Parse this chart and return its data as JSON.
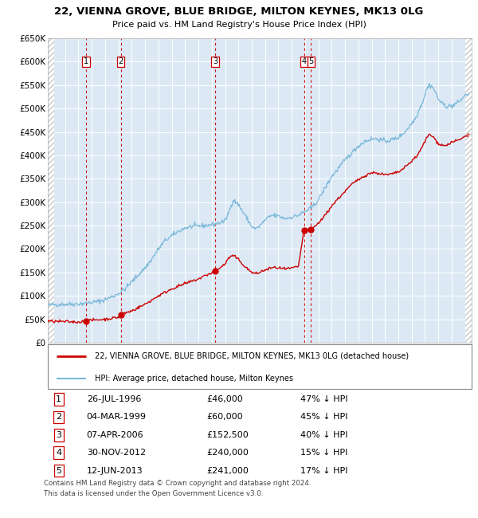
{
  "title": "22, VIENNA GROVE, BLUE BRIDGE, MILTON KEYNES, MK13 0LG",
  "subtitle": "Price paid vs. HM Land Registry's House Price Index (HPI)",
  "legend_line1": "22, VIENNA GROVE, BLUE BRIDGE, MILTON KEYNES, MK13 0LG (detached house)",
  "legend_line2": "HPI: Average price, detached house, Milton Keynes",
  "footer1": "Contains HM Land Registry data © Crown copyright and database right 2024.",
  "footer2": "This data is licensed under the Open Government Licence v3.0.",
  "sale_points": [
    {
      "num": 1,
      "year": 1996.57,
      "price": 46000,
      "date": "26-JUL-1996",
      "pct": "47% ↓ HPI"
    },
    {
      "num": 2,
      "year": 1999.17,
      "price": 60000,
      "date": "04-MAR-1999",
      "pct": "45% ↓ HPI"
    },
    {
      "num": 3,
      "year": 2006.27,
      "price": 152500,
      "date": "07-APR-2006",
      "pct": "40% ↓ HPI"
    },
    {
      "num": 4,
      "year": 2012.92,
      "price": 240000,
      "date": "30-NOV-2012",
      "pct": "15% ↓ HPI"
    },
    {
      "num": 5,
      "year": 2013.45,
      "price": 241000,
      "date": "12-JUN-2013",
      "pct": "17% ↓ HPI"
    }
  ],
  "hpi_color": "#7ab8d9",
  "price_color": "#cc0000",
  "dashed_color": "#cc0000",
  "plot_bg": "#dce9f5",
  "grid_color": "#ffffff",
  "hatch_color": "#c8c8c8",
  "border_color": "#999999",
  "ylim": [
    0,
    650000
  ],
  "yticks": [
    0,
    50000,
    100000,
    150000,
    200000,
    250000,
    300000,
    350000,
    400000,
    450000,
    500000,
    550000,
    600000,
    650000
  ],
  "xlim_start": 1993.7,
  "xlim_end": 2025.5,
  "hpi_anchors": [
    [
      1993.7,
      80000
    ],
    [
      1994.0,
      81000
    ],
    [
      1995.0,
      82000
    ],
    [
      1996.0,
      83000
    ],
    [
      1996.5,
      84000
    ],
    [
      1997.0,
      86000
    ],
    [
      1997.5,
      88000
    ],
    [
      1998.0,
      92000
    ],
    [
      1998.5,
      98000
    ],
    [
      1999.0,
      105000
    ],
    [
      1999.5,
      115000
    ],
    [
      2000.0,
      130000
    ],
    [
      2000.5,
      145000
    ],
    [
      2001.0,
      160000
    ],
    [
      2001.5,
      178000
    ],
    [
      2002.0,
      200000
    ],
    [
      2002.5,
      218000
    ],
    [
      2003.0,
      228000
    ],
    [
      2003.5,
      238000
    ],
    [
      2004.0,
      245000
    ],
    [
      2004.5,
      248000
    ],
    [
      2005.0,
      249000
    ],
    [
      2005.5,
      250000
    ],
    [
      2006.0,
      252000
    ],
    [
      2006.5,
      255000
    ],
    [
      2007.0,
      260000
    ],
    [
      2007.3,
      280000
    ],
    [
      2007.6,
      305000
    ],
    [
      2008.0,
      295000
    ],
    [
      2008.5,
      272000
    ],
    [
      2009.0,
      248000
    ],
    [
      2009.3,
      243000
    ],
    [
      2009.5,
      247000
    ],
    [
      2009.8,
      255000
    ],
    [
      2010.0,
      262000
    ],
    [
      2010.5,
      272000
    ],
    [
      2011.0,
      270000
    ],
    [
      2011.5,
      265000
    ],
    [
      2012.0,
      268000
    ],
    [
      2012.5,
      272000
    ],
    [
      2013.0,
      280000
    ],
    [
      2013.5,
      288000
    ],
    [
      2014.0,
      305000
    ],
    [
      2014.5,
      330000
    ],
    [
      2015.0,
      355000
    ],
    [
      2015.5,
      372000
    ],
    [
      2016.0,
      390000
    ],
    [
      2016.5,
      405000
    ],
    [
      2017.0,
      420000
    ],
    [
      2017.5,
      430000
    ],
    [
      2018.0,
      435000
    ],
    [
      2018.5,
      435000
    ],
    [
      2019.0,
      430000
    ],
    [
      2019.5,
      433000
    ],
    [
      2020.0,
      438000
    ],
    [
      2020.5,
      450000
    ],
    [
      2021.0,
      468000
    ],
    [
      2021.3,
      480000
    ],
    [
      2021.6,
      500000
    ],
    [
      2021.9,
      520000
    ],
    [
      2022.1,
      540000
    ],
    [
      2022.3,
      550000
    ],
    [
      2022.5,
      548000
    ],
    [
      2022.7,
      540000
    ],
    [
      2023.0,
      520000
    ],
    [
      2023.3,
      510000
    ],
    [
      2023.6,
      505000
    ],
    [
      2024.0,
      505000
    ],
    [
      2024.3,
      510000
    ],
    [
      2024.6,
      515000
    ],
    [
      2024.9,
      525000
    ],
    [
      2025.1,
      530000
    ],
    [
      2025.3,
      532000
    ]
  ],
  "price_anchors": [
    [
      1993.7,
      46000
    ],
    [
      1996.0,
      44000
    ],
    [
      1996.57,
      46000
    ],
    [
      1997.0,
      48000
    ],
    [
      1998.0,
      50000
    ],
    [
      1999.0,
      54000
    ],
    [
      1999.17,
      60000
    ],
    [
      2000.0,
      68000
    ],
    [
      2001.0,
      82000
    ],
    [
      2002.0,
      100000
    ],
    [
      2003.0,
      115000
    ],
    [
      2004.0,
      126000
    ],
    [
      2005.0,
      136000
    ],
    [
      2005.5,
      143000
    ],
    [
      2006.27,
      152500
    ],
    [
      2007.0,
      168000
    ],
    [
      2007.3,
      182000
    ],
    [
      2007.6,
      186000
    ],
    [
      2008.0,
      178000
    ],
    [
      2008.5,
      162000
    ],
    [
      2009.0,
      150000
    ],
    [
      2009.3,
      147000
    ],
    [
      2009.5,
      149000
    ],
    [
      2010.0,
      155000
    ],
    [
      2010.5,
      160000
    ],
    [
      2011.0,
      160000
    ],
    [
      2011.5,
      157000
    ],
    [
      2012.0,
      159000
    ],
    [
      2012.5,
      162000
    ],
    [
      2012.92,
      240000
    ],
    [
      2013.45,
      241000
    ],
    [
      2014.0,
      255000
    ],
    [
      2014.5,
      272000
    ],
    [
      2015.0,
      292000
    ],
    [
      2015.5,
      308000
    ],
    [
      2016.0,
      323000
    ],
    [
      2016.5,
      338000
    ],
    [
      2017.0,
      348000
    ],
    [
      2017.5,
      357000
    ],
    [
      2018.0,
      363000
    ],
    [
      2018.5,
      362000
    ],
    [
      2019.0,
      358000
    ],
    [
      2019.5,
      360000
    ],
    [
      2020.0,
      364000
    ],
    [
      2020.5,
      374000
    ],
    [
      2021.0,
      388000
    ],
    [
      2021.5,
      402000
    ],
    [
      2022.0,
      430000
    ],
    [
      2022.3,
      445000
    ],
    [
      2022.5,
      442000
    ],
    [
      2022.8,
      433000
    ],
    [
      2023.0,
      425000
    ],
    [
      2023.5,
      420000
    ],
    [
      2024.0,
      428000
    ],
    [
      2024.5,
      432000
    ],
    [
      2025.0,
      440000
    ],
    [
      2025.3,
      445000
    ]
  ]
}
